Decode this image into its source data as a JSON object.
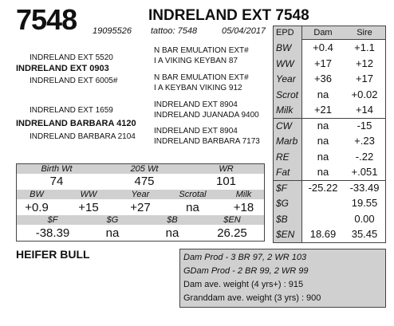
{
  "header": {
    "lot": "7548",
    "title": "INDRELAND EXT 7548",
    "registration": "19095526",
    "tattoo": "tattoo: 7548",
    "birth_date": "05/04/2017"
  },
  "pedigree": {
    "sire_sire_sire": "INDRELAND EXT 5520",
    "sire": "INDRELAND EXT 0903",
    "sire_dam": "INDRELAND EXT 6005#",
    "sire_sire_line1": "N BAR EMULATION EXT#",
    "sire_sire_line2": "I A VIKING KEYBAN 87",
    "sire_dam_line1": "N BAR EMULATION EXT#",
    "sire_dam_line2": "I A KEYBAN VIKING 912",
    "dam_sire": "INDRELAND EXT 1659",
    "dam": "INDRELAND BARBARA 4120",
    "dam_dam": "INDRELAND BARBARA 2104",
    "dam_sire_line1": "INDRELAND EXT 8904",
    "dam_sire_line2": "INDRELAND JUANADA 9400",
    "dam_dam_line1": "INDRELAND EXT 8904",
    "dam_dam_line2": "INDRELAND BARBARA 7173"
  },
  "epd": {
    "header_epd": "EPD",
    "header_dam": "Dam",
    "header_sire": "Sire",
    "rows": [
      {
        "label": "BW",
        "dam": "+0.4",
        "sire": "+1.1"
      },
      {
        "label": "WW",
        "dam": "+17",
        "sire": "+12"
      },
      {
        "label": "Year",
        "dam": "+36",
        "sire": "+17"
      },
      {
        "label": "Scrot",
        "dam": "na",
        "sire": "+0.02"
      },
      {
        "label": "Milk",
        "dam": "+21",
        "sire": "+14"
      },
      {
        "label": "CW",
        "dam": "na",
        "sire": "-15"
      },
      {
        "label": "Marb",
        "dam": "na",
        "sire": "+.23"
      },
      {
        "label": "RE",
        "dam": "na",
        "sire": "-.22"
      },
      {
        "label": "Fat",
        "dam": "na",
        "sire": "+.051"
      },
      {
        "label": "$F",
        "dam": "-25.22",
        "sire": "-33.49"
      },
      {
        "label": "$G",
        "dam": "",
        "sire": "19.55"
      },
      {
        "label": "$B",
        "dam": "",
        "sire": "0.00"
      },
      {
        "label": "$EN",
        "dam": "18.69",
        "sire": "35.45"
      }
    ]
  },
  "performance": {
    "birth_wt_label": "Birth Wt",
    "birth_wt": "74",
    "wt205_label": "205 Wt",
    "wt205": "475",
    "wr_label": "WR",
    "wr": "101",
    "bw_label": "BW",
    "bw": "+0.9",
    "ww_label": "WW",
    "ww": "+15",
    "year_label": "Year",
    "year": "+27",
    "scrotal_label": "Scrotal",
    "scrotal": "na",
    "milk_label": "Milk",
    "milk": "+18",
    "f_label": "$F",
    "f": "-38.39",
    "g_label": "$G",
    "g": "na",
    "b_label": "$B",
    "b": "na",
    "en_label": "$EN",
    "en": "26.25"
  },
  "sex": "HEIFER BULL",
  "dam_info": {
    "dam_prod": "Dam Prod - 3 BR 97, 2 WR 103",
    "gdam_prod": "GDam Prod - 2 BR 99, 2 WR 99",
    "dam_weight": "Dam ave. weight (4 yrs+) : 915",
    "granddam_weight": "Granddam ave. weight (3 yrs) : 900"
  }
}
